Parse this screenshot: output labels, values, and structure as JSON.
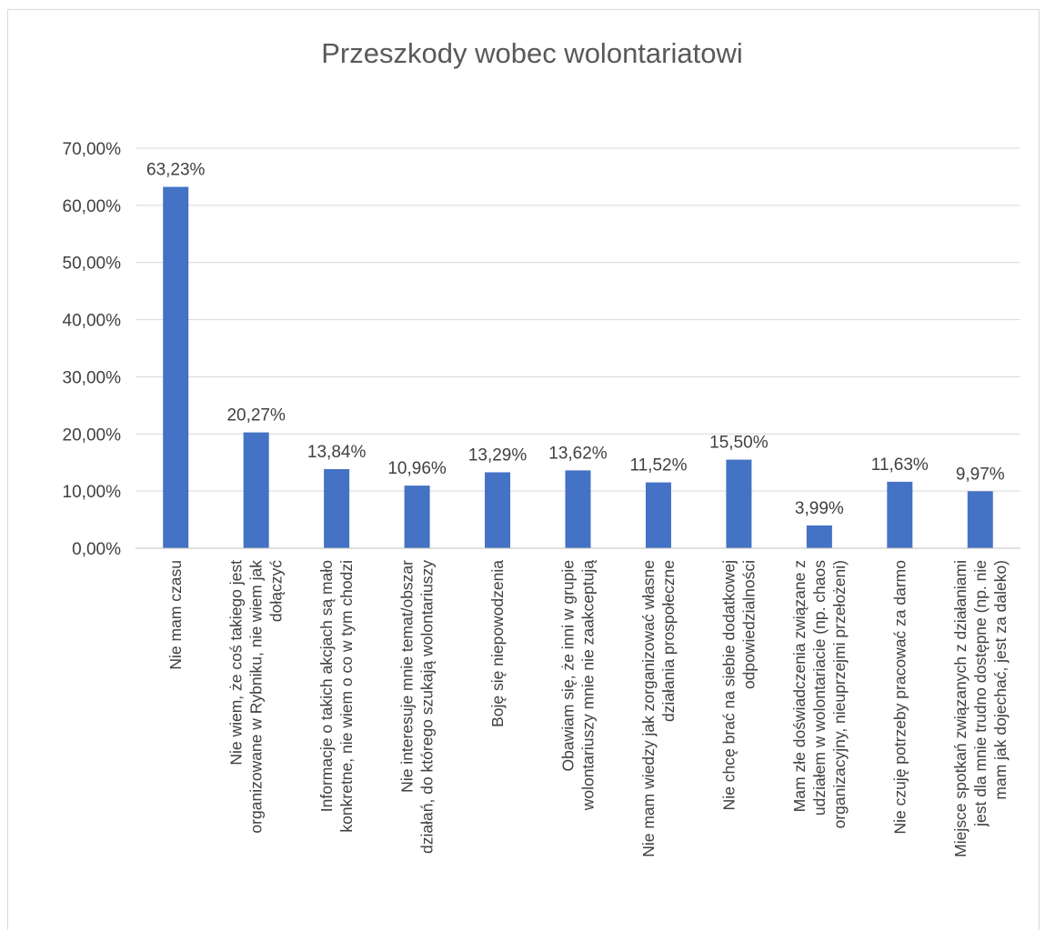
{
  "chart_data": {
    "type": "bar",
    "title": "Przeszkody wobec wolontariatowi",
    "categories": [
      [
        "Nie mam czasu"
      ],
      [
        "Nie wiem, że coś takiego jest",
        "organizowane w Rybniku, nie wiem jak",
        "dołączyć"
      ],
      [
        "Informacje o takich akcjach są mało",
        "konkretne, nie wiem o co w tym chodzi"
      ],
      [
        "Nie interesuje mnie temat/obszar",
        "działań, do którego szukają wolontariuszy"
      ],
      [
        "Boję się niepowodzenia"
      ],
      [
        "Obawiam się, że inni w grupie",
        "wolontariuszy mnie nie zaakceptują"
      ],
      [
        "Nie mam wiedzy jak zorganizować własne",
        "działania prospołeczne"
      ],
      [
        "Nie chcę brać na siebie dodatkowej",
        "odpowiedzialności"
      ],
      [
        "Mam złe doświadczenia związane z",
        "udziałem w wolontariacie (np. chaos",
        "organizacyjny, nieuprzejmi przełożeni)"
      ],
      [
        "Nie czuję potrzeby pracować za darmo"
      ],
      [
        "Miejsce spotkań związanych z działaniami",
        "jest dla mnie trudno dostępne (np. nie",
        "mam jak dojechać, jest za daleko)"
      ]
    ],
    "values": [
      63.23,
      20.27,
      13.84,
      10.96,
      13.29,
      13.62,
      11.52,
      15.5,
      3.99,
      11.63,
      9.97
    ],
    "data_labels": [
      "63,23%",
      "20,27%",
      "13,84%",
      "10,96%",
      "13,29%",
      "13,62%",
      "11,52%",
      "15,50%",
      "3,99%",
      "11,63%",
      "9,97%"
    ],
    "y_ticks": [
      0,
      10,
      20,
      30,
      40,
      50,
      60,
      70
    ],
    "y_tick_labels": [
      "0,00%",
      "10,00%",
      "20,00%",
      "30,00%",
      "40,00%",
      "50,00%",
      "60,00%",
      "70,00%"
    ],
    "ylim": [
      0,
      70
    ],
    "grid": true,
    "legend": "none",
    "colors": {
      "bar": "#4472C4",
      "grid": "#d9d9d9",
      "axis": "#bfbfbf",
      "text": "#404040",
      "title": "#595959"
    }
  }
}
